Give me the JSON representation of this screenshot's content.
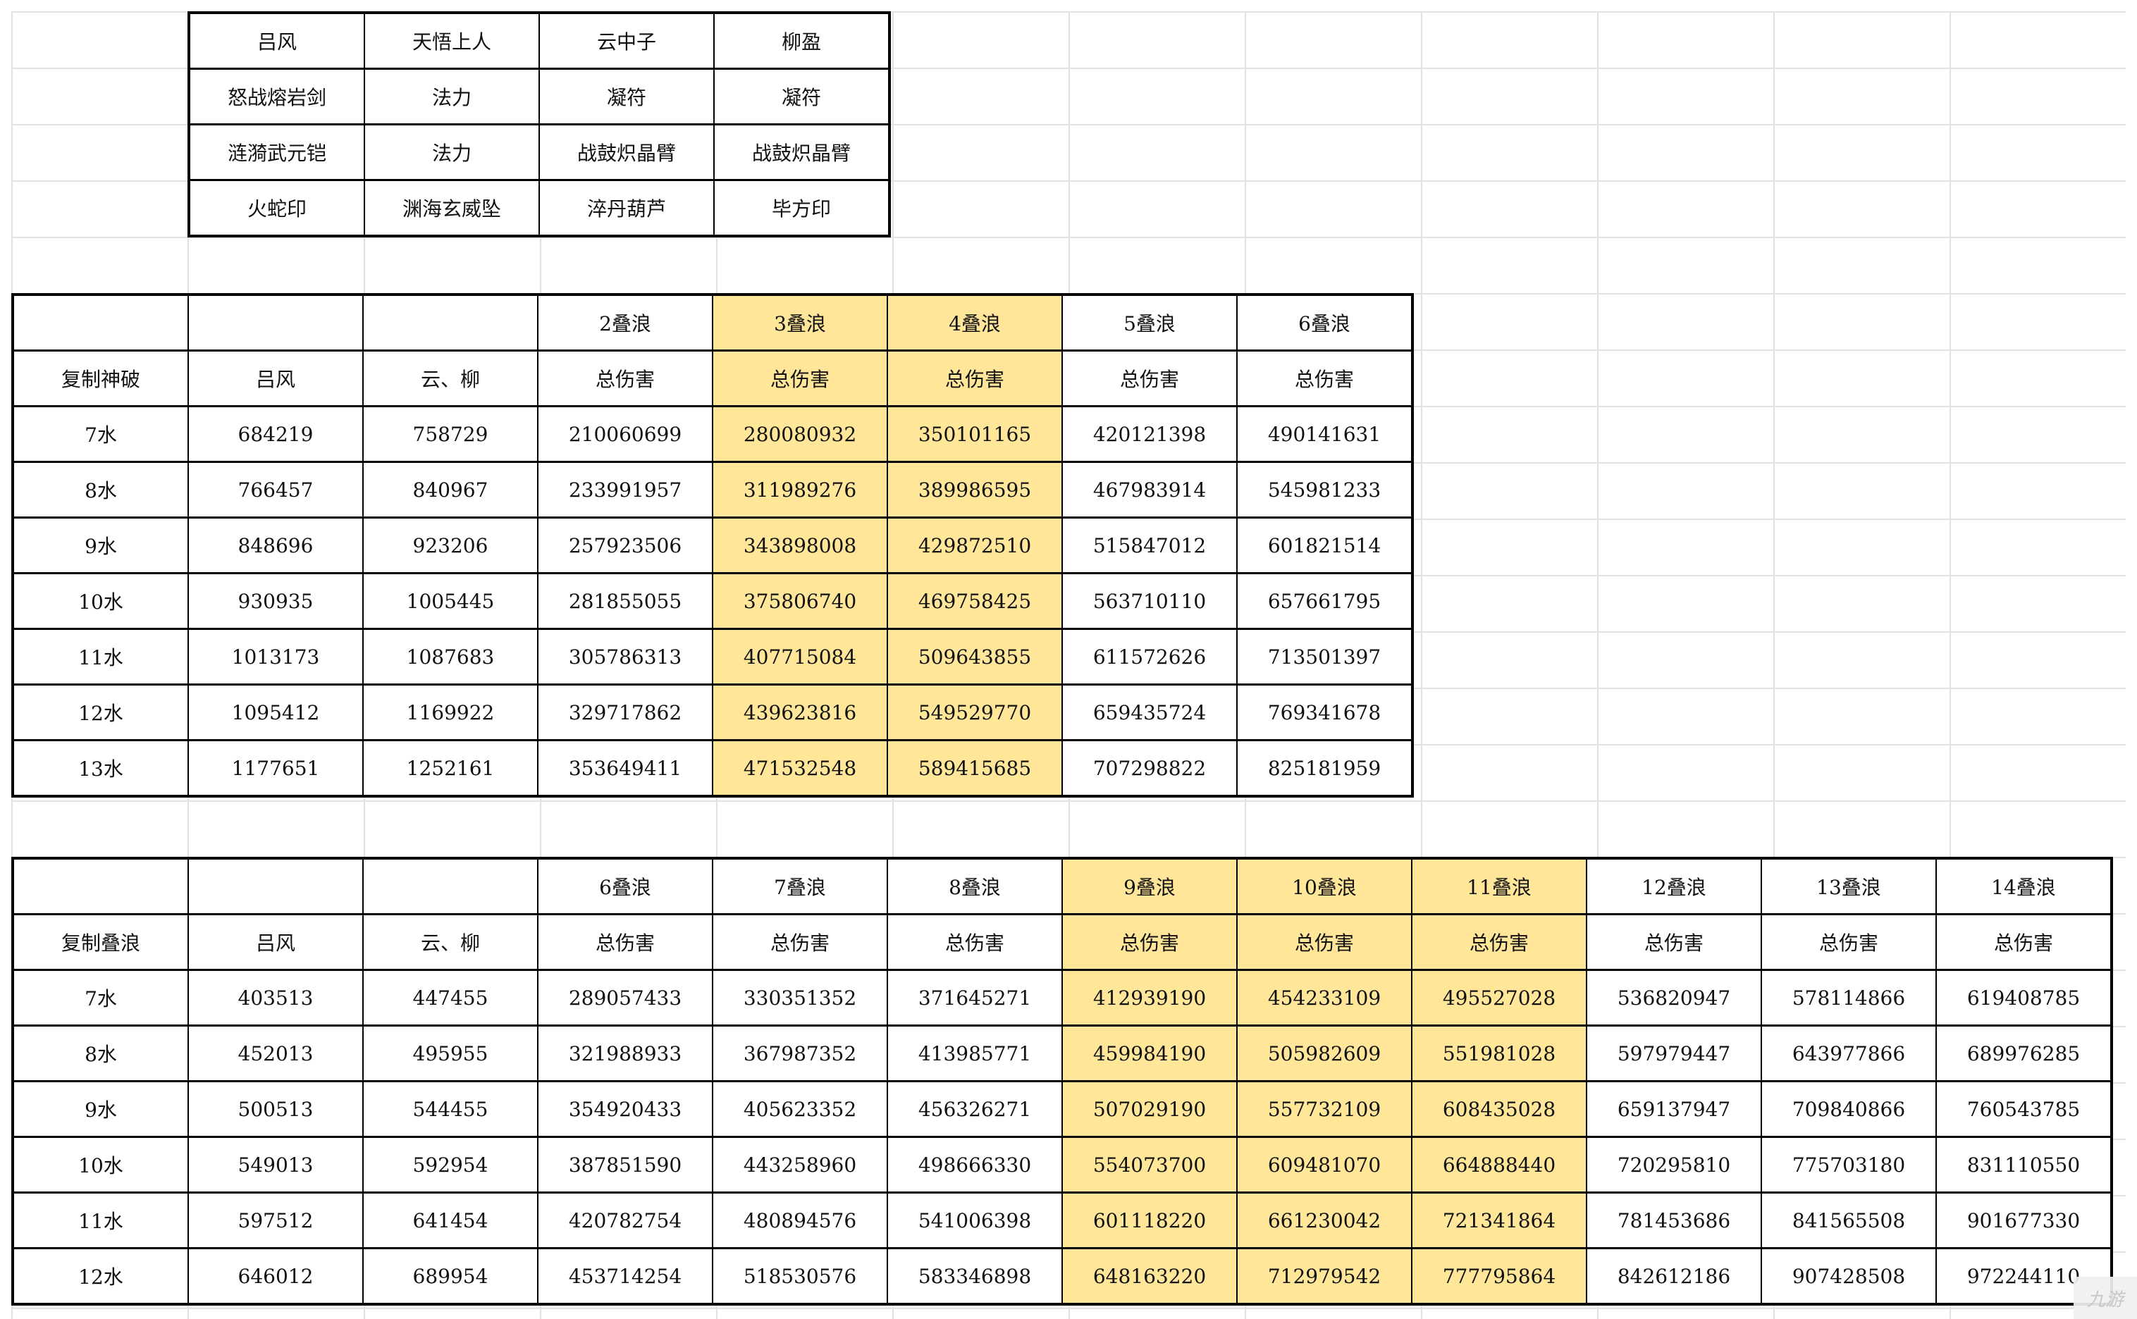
{
  "highlight_color": "#FFE699",
  "table1": {
    "rows": [
      [
        "吕风",
        "天悟上人",
        "云中子",
        "柳盈"
      ],
      [
        "怒战熔岩剑",
        "法力",
        "凝符",
        "凝符"
      ],
      [
        "涟漪武元铠",
        "法力",
        "战鼓炽晶臂",
        "战鼓炽晶臂"
      ],
      [
        "火蛇印",
        "渊海玄威坠",
        "淬丹葫芦",
        "毕方印"
      ]
    ]
  },
  "table2": {
    "highlight_cols": [
      4,
      5
    ],
    "rows": [
      [
        "",
        "",
        "",
        "2叠浪",
        "3叠浪",
        "4叠浪",
        "5叠浪",
        "6叠浪"
      ],
      [
        "复制神破",
        "吕风",
        "云、柳",
        "总伤害",
        "总伤害",
        "总伤害",
        "总伤害",
        "总伤害"
      ],
      [
        "7水",
        "684219",
        "758729",
        "210060699",
        "280080932",
        "350101165",
        "420121398",
        "490141631"
      ],
      [
        "8水",
        "766457",
        "840967",
        "233991957",
        "311989276",
        "389986595",
        "467983914",
        "545981233"
      ],
      [
        "9水",
        "848696",
        "923206",
        "257923506",
        "343898008",
        "429872510",
        "515847012",
        "601821514"
      ],
      [
        "10水",
        "930935",
        "1005445",
        "281855055",
        "375806740",
        "469758425",
        "563710110",
        "657661795"
      ],
      [
        "11水",
        "1013173",
        "1087683",
        "305786313",
        "407715084",
        "509643855",
        "611572626",
        "713501397"
      ],
      [
        "12水",
        "1095412",
        "1169922",
        "329717862",
        "439623816",
        "549529770",
        "659435724",
        "769341678"
      ],
      [
        "13水",
        "1177651",
        "1252161",
        "353649411",
        "471532548",
        "589415685",
        "707298822",
        "825181959"
      ]
    ]
  },
  "table3": {
    "highlight_cols": [
      6,
      7,
      8
    ],
    "rows": [
      [
        "",
        "",
        "",
        "6叠浪",
        "7叠浪",
        "8叠浪",
        "9叠浪",
        "10叠浪",
        "11叠浪",
        "12叠浪",
        "13叠浪",
        "14叠浪"
      ],
      [
        "复制叠浪",
        "吕风",
        "云、柳",
        "总伤害",
        "总伤害",
        "总伤害",
        "总伤害",
        "总伤害",
        "总伤害",
        "总伤害",
        "总伤害",
        "总伤害"
      ],
      [
        "7水",
        "403513",
        "447455",
        "289057433",
        "330351352",
        "371645271",
        "412939190",
        "454233109",
        "495527028",
        "536820947",
        "578114866",
        "619408785"
      ],
      [
        "8水",
        "452013",
        "495955",
        "321988933",
        "367987352",
        "413985771",
        "459984190",
        "505982609",
        "551981028",
        "597979447",
        "643977866",
        "689976285"
      ],
      [
        "9水",
        "500513",
        "544455",
        "354920433",
        "405623352",
        "456326271",
        "507029190",
        "557732109",
        "608435028",
        "659137947",
        "709840866",
        "760543785"
      ],
      [
        "10水",
        "549013",
        "592954",
        "387851590",
        "443258960",
        "498666330",
        "554073700",
        "609481070",
        "664888440",
        "720295810",
        "775703180",
        "831110550"
      ],
      [
        "11水",
        "597512",
        "641454",
        "420782754",
        "480894576",
        "541006398",
        "601118220",
        "661230042",
        "721341864",
        "781453686",
        "841565508",
        "901677330"
      ],
      [
        "12水",
        "646012",
        "689954",
        "453714254",
        "518530576",
        "583346898",
        "648163220",
        "712979542",
        "777795864",
        "842612186",
        "907428508",
        "972244110"
      ]
    ]
  },
  "watermark": {
    "text": "九游",
    "icon": "jiuyou-logo-icon"
  }
}
